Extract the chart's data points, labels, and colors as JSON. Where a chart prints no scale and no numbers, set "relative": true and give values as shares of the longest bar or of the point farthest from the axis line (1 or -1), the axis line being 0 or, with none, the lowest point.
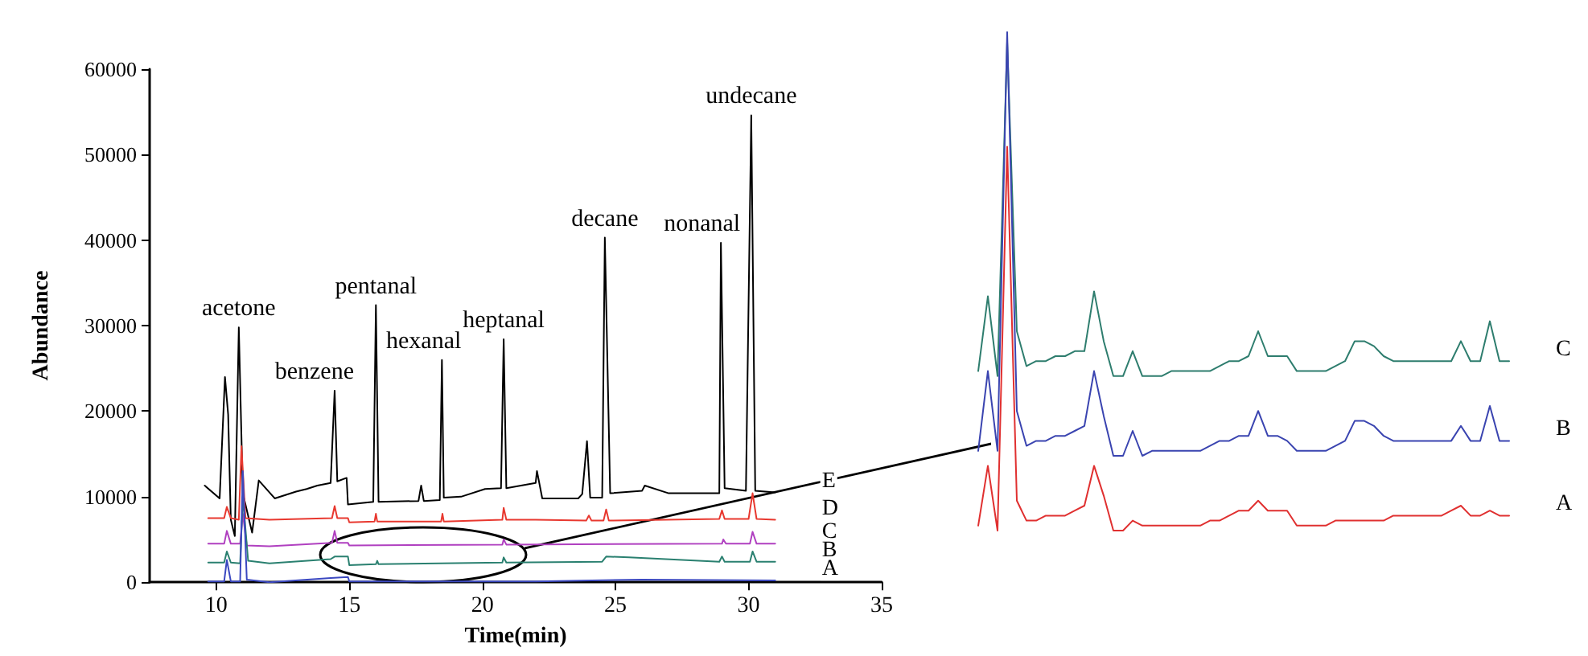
{
  "chart_data": [
    {
      "type": "line",
      "xlabel": "Time(min)",
      "ylabel": "Abundance",
      "xlim": [
        7.5,
        35
      ],
      "xticks": [
        10,
        15,
        20,
        25,
        30,
        35
      ],
      "ylim": [
        0,
        60000
      ],
      "yticks": [
        0,
        10000,
        20000,
        30000,
        40000,
        50000,
        60000
      ],
      "grid": false,
      "legend": false,
      "marker": "none",
      "line_style": "solid",
      "annotations": [
        {
          "text": "acetone",
          "x": 10.85,
          "y": 29800
        },
        {
          "text": "benzene",
          "x": 14.45,
          "y": 22400
        },
        {
          "text": "pentanal",
          "x": 16.0,
          "y": 32400
        },
        {
          "text": "hexanal",
          "x": 18.48,
          "y": 26000
        },
        {
          "text": "heptanal",
          "x": 20.8,
          "y": 28400
        },
        {
          "text": "decane",
          "x": 24.6,
          "y": 40300
        },
        {
          "text": "nonanal",
          "x": 28.96,
          "y": 39700
        },
        {
          "text": "undecane",
          "x": 30.1,
          "y": 54600
        }
      ],
      "series": [
        {
          "name": "E",
          "color": "#000000",
          "x": [
            9.57,
            10.13,
            10.33,
            10.45,
            10.55,
            10.7,
            10.85,
            11.0,
            11.35,
            11.6,
            12.2,
            12.6,
            13.0,
            13.4,
            13.8,
            14.3,
            14.45,
            14.55,
            14.9,
            14.95,
            15.9,
            16.0,
            16.1,
            17.6,
            17.7,
            17.8,
            18.4,
            18.48,
            18.55,
            19.2,
            20.1,
            20.7,
            20.8,
            20.9,
            22.0,
            22.05,
            22.25,
            23.6,
            23.75,
            23.93,
            24.05,
            24.5,
            24.6,
            24.8,
            26.0,
            26.1,
            27.0,
            28.9,
            28.96,
            29.1,
            29.9,
            30.1,
            30.25,
            31.0
          ],
          "values": [
            11300,
            9800,
            24000,
            19600,
            7300,
            5400,
            29800,
            10400,
            5800,
            11900,
            9800,
            10200,
            10600,
            10900,
            11300,
            11600,
            22400,
            11800,
            12200,
            9100,
            9400,
            32400,
            9400,
            9500,
            11300,
            9500,
            9600,
            26000,
            9900,
            10000,
            10900,
            11000,
            28400,
            11000,
            11600,
            13000,
            9800,
            9800,
            10300,
            16500,
            9900,
            9900,
            40300,
            10400,
            10700,
            11300,
            10400,
            10400,
            39700,
            11000,
            10700,
            54600,
            10700,
            10500
          ]
        },
        {
          "name": "D",
          "color": "#e8382f",
          "x": [
            9.7,
            10.3,
            10.4,
            10.55,
            10.85,
            10.95,
            11.1,
            12.0,
            14.35,
            14.45,
            14.55,
            14.95,
            15.0,
            15.95,
            16.0,
            16.05,
            18.45,
            18.5,
            18.55,
            20.75,
            20.8,
            20.9,
            22.0,
            23.9,
            24.0,
            24.1,
            24.55,
            24.65,
            24.75,
            28.9,
            29.0,
            29.1,
            30.0,
            30.15,
            30.3,
            31.0
          ],
          "values": [
            7500,
            7500,
            8800,
            7500,
            7300,
            15900,
            7500,
            7300,
            7500,
            8900,
            7500,
            7500,
            7000,
            7100,
            8000,
            7100,
            7100,
            8000,
            7100,
            7300,
            8700,
            7300,
            7300,
            7200,
            7800,
            7200,
            7200,
            8500,
            7200,
            7400,
            8400,
            7400,
            7400,
            10400,
            7400,
            7300
          ]
        },
        {
          "name": "C",
          "color": "#b040c0",
          "x": [
            9.7,
            10.3,
            10.4,
            10.55,
            10.9,
            11.0,
            11.15,
            12.0,
            14.35,
            14.45,
            14.55,
            14.95,
            15.0,
            20.75,
            20.8,
            20.9,
            29.0,
            29.05,
            29.15,
            30.05,
            30.15,
            30.3,
            31.0
          ],
          "values": [
            4500,
            4500,
            6000,
            4500,
            4500,
            8000,
            4300,
            4200,
            4600,
            6000,
            4600,
            4600,
            4300,
            4400,
            5000,
            4400,
            4500,
            5000,
            4500,
            4500,
            5900,
            4500,
            4500
          ]
        },
        {
          "name": "B",
          "color": "#2a8070",
          "x": [
            9.7,
            10.3,
            10.4,
            10.55,
            10.9,
            11.0,
            11.2,
            12.0,
            14.3,
            14.45,
            14.95,
            15.0,
            16.0,
            16.05,
            16.1,
            20.75,
            20.8,
            20.9,
            24.5,
            24.65,
            25.5,
            28.9,
            29.0,
            29.1,
            30.05,
            30.15,
            30.3,
            31.0
          ],
          "values": [
            2300,
            2300,
            3600,
            2300,
            2200,
            10000,
            2500,
            2200,
            2700,
            3000,
            3000,
            2000,
            2100,
            2500,
            2100,
            2300,
            2900,
            2300,
            2400,
            3000,
            2900,
            2400,
            3000,
            2400,
            2400,
            3600,
            2400,
            2400
          ]
        },
        {
          "name": "A",
          "color": "#3b48c0",
          "x": [
            9.7,
            10.3,
            10.4,
            10.55,
            10.9,
            11.0,
            11.15,
            12.0,
            14.3,
            14.95,
            15.0,
            22.0,
            26.0,
            31.0
          ],
          "values": [
            100,
            100,
            2600,
            100,
            100,
            13000,
            300,
            0,
            500,
            600,
            100,
            100,
            300,
            200
          ]
        }
      ]
    },
    {
      "type": "line",
      "relative": true,
      "marker": "none",
      "legend": false,
      "grid": false,
      "categories": [
        null,
        null,
        null,
        null,
        null,
        null,
        null,
        null,
        null,
        null,
        null,
        null,
        null,
        null,
        null,
        null,
        null,
        null,
        null,
        null,
        null,
        null,
        null,
        null,
        null,
        null,
        null,
        null,
        null,
        null,
        null,
        null,
        null,
        null,
        null,
        null,
        null,
        null,
        null,
        null,
        null,
        null,
        null,
        null,
        null,
        null,
        null,
        null,
        null,
        null,
        null,
        null,
        null,
        null,
        null,
        null
      ],
      "series": [
        {
          "name": "C",
          "color": "#2e7d6e",
          "values": [
            0.32,
            0.47,
            0.31,
            0.98,
            0.4,
            0.33,
            0.34,
            0.34,
            0.35,
            0.35,
            0.36,
            0.36,
            0.48,
            0.38,
            0.31,
            0.31,
            0.36,
            0.31,
            0.31,
            0.31,
            0.32,
            0.32,
            0.32,
            0.32,
            0.32,
            0.33,
            0.34,
            0.34,
            0.35,
            0.4,
            0.35,
            0.35,
            0.35,
            0.32,
            0.32,
            0.32,
            0.32,
            0.33,
            0.34,
            0.38,
            0.38,
            0.37,
            0.35,
            0.34,
            0.34,
            0.34,
            0.34,
            0.34,
            0.34,
            0.34,
            0.38,
            0.34,
            0.34,
            0.42,
            0.34,
            0.34
          ]
        },
        {
          "name": "B",
          "color": "#3a44b0",
          "values": [
            0.16,
            0.32,
            0.16,
            1.0,
            0.24,
            0.17,
            0.18,
            0.18,
            0.19,
            0.19,
            0.2,
            0.21,
            0.32,
            0.23,
            0.15,
            0.15,
            0.2,
            0.15,
            0.16,
            0.16,
            0.16,
            0.16,
            0.16,
            0.16,
            0.17,
            0.18,
            0.18,
            0.19,
            0.19,
            0.24,
            0.19,
            0.19,
            0.18,
            0.16,
            0.16,
            0.16,
            0.16,
            0.17,
            0.18,
            0.22,
            0.22,
            0.21,
            0.19,
            0.18,
            0.18,
            0.18,
            0.18,
            0.18,
            0.18,
            0.18,
            0.21,
            0.18,
            0.18,
            0.25,
            0.18,
            0.18
          ]
        },
        {
          "name": "A",
          "color": "#e03030",
          "values": [
            0.01,
            0.13,
            0,
            0.77,
            0.06,
            0.02,
            0.02,
            0.03,
            0.03,
            0.03,
            0.04,
            0.05,
            0.13,
            0.07,
            0,
            0,
            0.02,
            0.01,
            0.01,
            0.01,
            0.01,
            0.01,
            0.01,
            0.01,
            0.02,
            0.02,
            0.03,
            0.04,
            0.04,
            0.06,
            0.04,
            0.04,
            0.04,
            0.01,
            0.01,
            0.01,
            0.01,
            0.02,
            0.02,
            0.02,
            0.02,
            0.02,
            0.02,
            0.03,
            0.03,
            0.03,
            0.03,
            0.03,
            0.03,
            0.04,
            0.05,
            0.03,
            0.03,
            0.04,
            0.03,
            0.03
          ]
        }
      ]
    }
  ]
}
